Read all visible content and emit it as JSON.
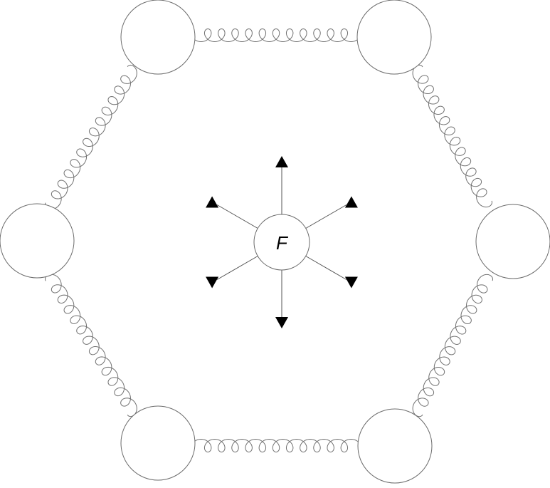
{
  "diagram": {
    "center_label": "F",
    "colors": {
      "stroke": "#6b6b6b",
      "spring": "#707070",
      "arrow": "#555555",
      "arrowhead": "#000000",
      "fill": "#ffffff",
      "text": "#000000"
    },
    "masses": [
      {
        "id": "mass-top-left"
      },
      {
        "id": "mass-top-right"
      },
      {
        "id": "mass-right"
      },
      {
        "id": "mass-bottom-right"
      },
      {
        "id": "mass-bottom-left"
      },
      {
        "id": "mass-left"
      }
    ],
    "springs": [
      {
        "id": "spring-top",
        "coils": 12
      },
      {
        "id": "spring-top-right",
        "coils": 13
      },
      {
        "id": "spring-bottom-right",
        "coils": 13
      },
      {
        "id": "spring-bottom",
        "coils": 12
      },
      {
        "id": "spring-bottom-left",
        "coils": 13
      },
      {
        "id": "spring-top-left",
        "coils": 13
      }
    ],
    "arrows": [
      {
        "id": "arrow-up"
      },
      {
        "id": "arrow-up-right"
      },
      {
        "id": "arrow-down-right"
      },
      {
        "id": "arrow-down"
      },
      {
        "id": "arrow-down-left"
      },
      {
        "id": "arrow-up-left"
      }
    ]
  }
}
